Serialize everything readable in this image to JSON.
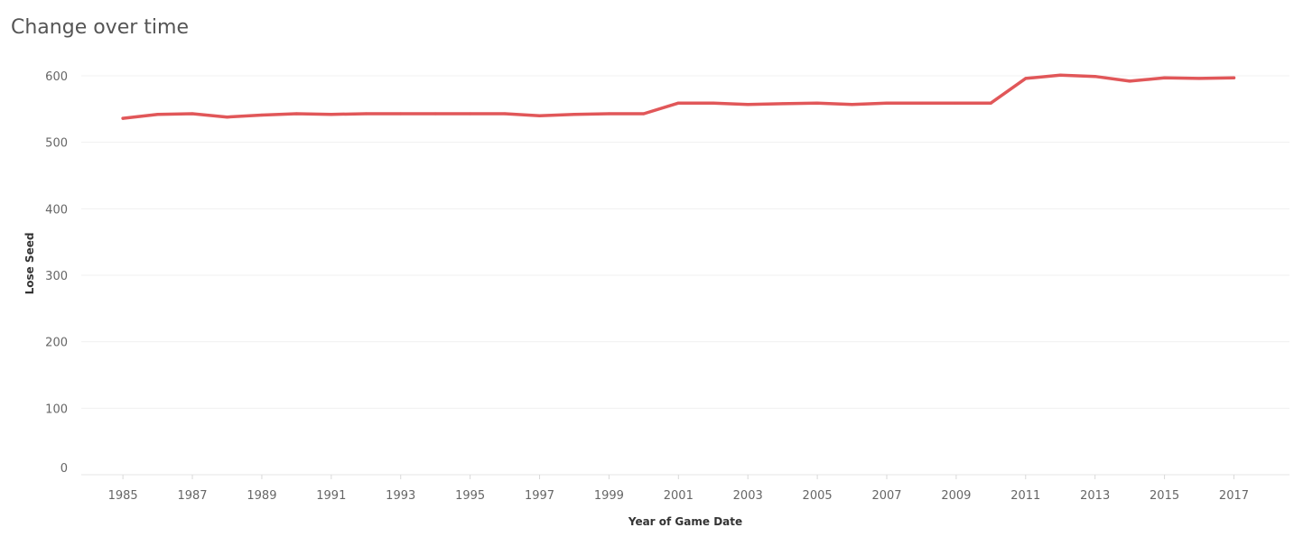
{
  "title": "Change over time",
  "chart_data": {
    "type": "line",
    "title": "Change over time",
    "xlabel": "Year of Game Date",
    "ylabel": "Lose Seed",
    "xlim": [
      1983.8,
      2018.6
    ],
    "ylim": [
      0,
      600
    ],
    "yticks": [
      0,
      100,
      200,
      300,
      400,
      500,
      600
    ],
    "xticks": [
      1985,
      1987,
      1989,
      1991,
      1993,
      1995,
      1997,
      1999,
      2001,
      2003,
      2005,
      2007,
      2009,
      2011,
      2013,
      2015,
      2017
    ],
    "grid": "horizontal",
    "line_color": "#e15759",
    "series": [
      {
        "x": [
          1985,
          1986,
          1987,
          1988,
          1989,
          1990,
          1991,
          1992,
          1993,
          1994,
          1995,
          1996,
          1997,
          1998,
          1999,
          2000,
          2001,
          2002,
          2003,
          2004,
          2005,
          2006,
          2007,
          2008,
          2009,
          2010,
          2011,
          2012,
          2013,
          2014,
          2015,
          2016,
          2017
        ],
        "values": [
          536,
          542,
          543,
          538,
          541,
          543,
          542,
          543,
          543,
          543,
          543,
          543,
          540,
          542,
          543,
          543,
          559,
          559,
          557,
          558,
          559,
          557,
          559,
          559,
          559,
          559,
          596,
          601,
          599,
          592,
          597,
          596,
          597
        ]
      }
    ]
  }
}
